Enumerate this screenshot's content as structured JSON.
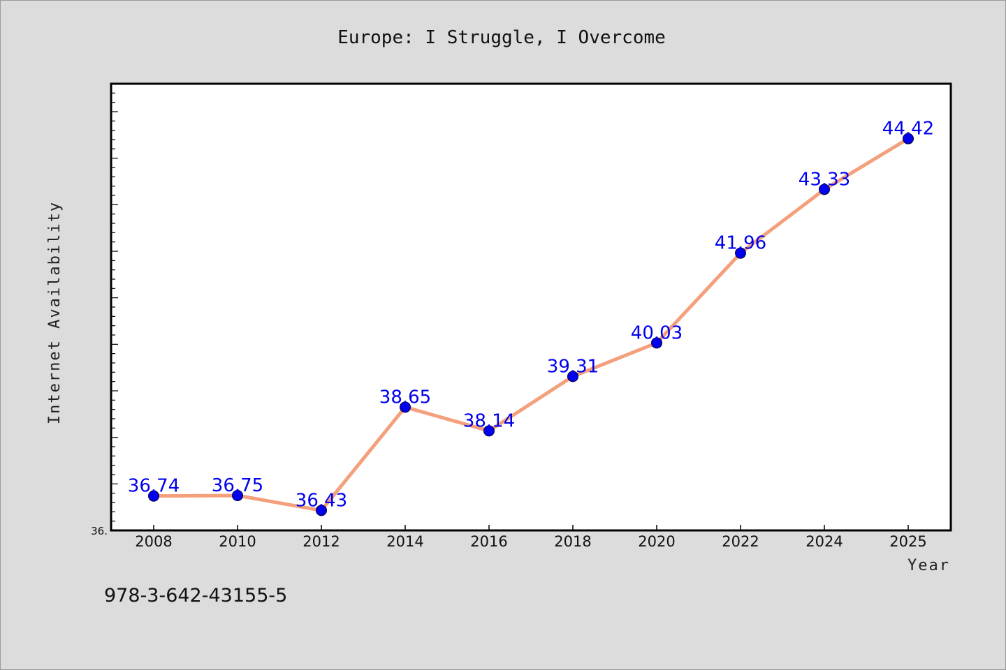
{
  "chart_data": {
    "type": "line",
    "title": "Europe: I Struggle, I Overcome",
    "xlabel": "Year",
    "ylabel": "Internet Availability",
    "x": [
      2008,
      2010,
      2012,
      2014,
      2016,
      2018,
      2020,
      2022,
      2024,
      2025
    ],
    "x_tick_labels": [
      "2008",
      "2010",
      "2012",
      "2014",
      "2016",
      "2018",
      "2020",
      "2022",
      "2024",
      "2025"
    ],
    "series": [
      {
        "values": [
          36.74,
          36.75,
          36.43,
          38.65,
          38.14,
          39.31,
          40.03,
          41.96,
          43.33,
          44.42
        ],
        "labels": [
          "36.74",
          "36.75",
          "36.43",
          "38.65",
          "38.14",
          "39.31",
          "40.03",
          "41.96",
          "43.33",
          "44.42"
        ],
        "line_color": "#f4a07c",
        "marker_color": "#0000ee"
      }
    ],
    "y_tick_label": "36.",
    "ylim": [
      36.0,
      45.6
    ],
    "grid": false,
    "legend": "none"
  },
  "footer": {
    "isbn": "978-3-642-43155-5"
  }
}
